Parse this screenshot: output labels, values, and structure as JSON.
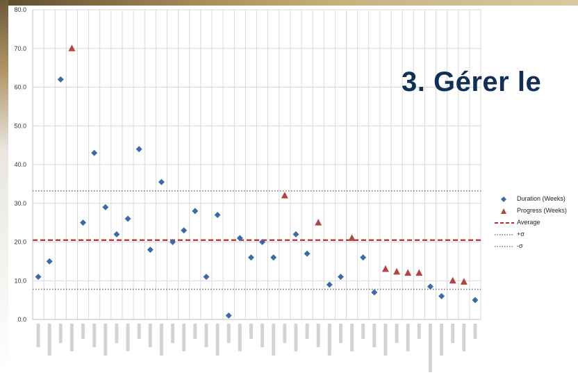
{
  "slide": {
    "title": "3. Gérer le"
  },
  "chart_data": {
    "type": "scatter",
    "ylim": [
      0,
      80
    ],
    "y_ticks": [
      "0.0",
      "10.0",
      "20.0",
      "30.0",
      "40.0",
      "50.0",
      "60.0",
      "70.0",
      "80.0"
    ],
    "categories_count": 40,
    "grid": true,
    "legend_position": "right",
    "series": [
      {
        "name": "Duration (Weeks)",
        "marker": "diamond",
        "color": "#3d6aa8",
        "points": [
          [
            1,
            11.0
          ],
          [
            2,
            15.0
          ],
          [
            3,
            62.0
          ],
          [
            5,
            25.0
          ],
          [
            6,
            43.0
          ],
          [
            7,
            29.0
          ],
          [
            8,
            22.0
          ],
          [
            9,
            26.0
          ],
          [
            10,
            44.0
          ],
          [
            11,
            18.0
          ],
          [
            12,
            35.5
          ],
          [
            13,
            20.0
          ],
          [
            14,
            23.0
          ],
          [
            15,
            28.0
          ],
          [
            16,
            11.0
          ],
          [
            17,
            27.0
          ],
          [
            18,
            1.0
          ],
          [
            19,
            21.0
          ],
          [
            20,
            16.0
          ],
          [
            21,
            20.0
          ],
          [
            22,
            16.0
          ],
          [
            24,
            22.0
          ],
          [
            25,
            17.0
          ],
          [
            27,
            9.0
          ],
          [
            28,
            11.0
          ],
          [
            30,
            16.0
          ],
          [
            31,
            7.0
          ],
          [
            36,
            8.5
          ],
          [
            37,
            6.0
          ],
          [
            40,
            5.0
          ]
        ]
      },
      {
        "name": "Progress (Weeks)",
        "marker": "triangle",
        "color": "#b0463f",
        "points": [
          [
            4,
            70.0
          ],
          [
            23,
            32.0
          ],
          [
            26,
            25.0
          ],
          [
            29,
            21.0
          ],
          [
            32,
            13.0
          ],
          [
            33,
            12.3
          ],
          [
            34,
            12.0
          ],
          [
            35,
            12.0
          ],
          [
            38,
            10.0
          ],
          [
            39,
            9.7
          ]
        ]
      }
    ],
    "reference_lines": [
      {
        "name": "Average",
        "value": 20.5,
        "color": "#c0282d",
        "style": "dashed"
      },
      {
        "name": "+σ",
        "value": 33.2,
        "color": "#777777",
        "style": "dotted"
      },
      {
        "name": "-σ",
        "value": 7.8,
        "color": "#777777",
        "style": "dotted"
      }
    ]
  }
}
